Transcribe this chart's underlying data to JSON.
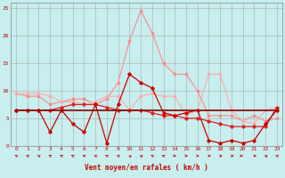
{
  "title": "",
  "xlabel": "Vent moyen/en rafales ( km/h )",
  "xlim": [
    -0.5,
    23.5
  ],
  "ylim": [
    0,
    26
  ],
  "background_color": "#c8eeee",
  "grid_color": "#aaaaaa",
  "x": [
    0,
    1,
    2,
    3,
    4,
    5,
    6,
    7,
    8,
    9,
    10,
    11,
    12,
    13,
    14,
    15,
    16,
    17,
    18,
    19,
    20,
    21,
    22,
    23
  ],
  "line_dark_red": [
    6.5,
    6.5,
    6.5,
    6.5,
    6.5,
    6.5,
    6.5,
    6.5,
    6.5,
    6.5,
    6.5,
    6.5,
    6.5,
    6.5,
    6.5,
    6.5,
    6.5,
    6.5,
    6.5,
    6.5,
    6.5,
    6.5,
    6.5,
    6.5
  ],
  "line_red_diag": [
    6.5,
    6.5,
    6.5,
    6.5,
    7.0,
    7.5,
    7.5,
    7.5,
    7.0,
    6.5,
    6.5,
    6.5,
    6.0,
    5.5,
    5.5,
    5.0,
    5.0,
    4.5,
    4.0,
    3.5,
    3.5,
    3.5,
    3.5,
    7.0
  ],
  "line_red_jagged": [
    6.5,
    6.5,
    6.5,
    2.5,
    6.5,
    4.0,
    2.5,
    7.5,
    0.5,
    7.5,
    13.0,
    11.5,
    10.5,
    6.0,
    5.5,
    6.0,
    6.5,
    1.0,
    0.5,
    1.0,
    0.5,
    1.0,
    4.0,
    6.5
  ],
  "line_pink_upper": [
    9.5,
    9.5,
    9.5,
    9.0,
    8.0,
    8.0,
    7.5,
    8.0,
    9.0,
    9.0,
    6.5,
    9.0,
    9.5,
    9.0,
    9.0,
    5.5,
    6.5,
    13.0,
    13.0,
    6.5,
    4.5,
    4.0,
    6.5,
    7.0
  ],
  "line_pink_peak": [
    9.5,
    9.0,
    9.0,
    7.5,
    8.0,
    8.5,
    8.5,
    7.5,
    8.5,
    11.5,
    19.0,
    24.5,
    20.5,
    15.0,
    13.0,
    13.0,
    10.0,
    5.5,
    5.5,
    5.5,
    4.5,
    5.5,
    4.5,
    5.0
  ],
  "color_dark_red": "#880000",
  "color_red_diag": "#dd2222",
  "color_red_jagged": "#cc0000",
  "color_pink_upper": "#ffaaaa",
  "color_pink_peak": "#ff8888",
  "yticks": [
    0,
    5,
    10,
    15,
    20,
    25
  ],
  "xticks": [
    0,
    1,
    2,
    3,
    4,
    5,
    6,
    7,
    8,
    9,
    10,
    11,
    12,
    13,
    14,
    15,
    16,
    17,
    18,
    19,
    20,
    21,
    22,
    23
  ],
  "wind_angles": [
    210,
    210,
    210,
    215,
    215,
    215,
    220,
    210,
    215,
    210,
    200,
    205,
    210,
    215,
    30,
    40,
    50,
    60,
    70,
    80,
    85,
    80,
    205,
    210
  ]
}
